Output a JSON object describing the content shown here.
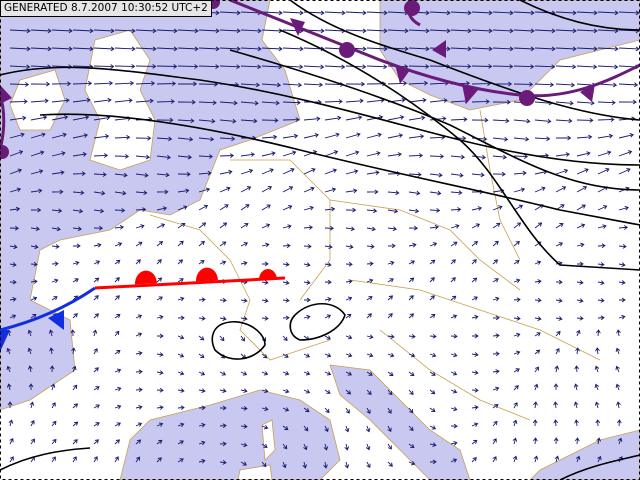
{
  "header": {
    "title": "GENERATED 8.7.2007 10:30:52 UTC+2"
  }
}
